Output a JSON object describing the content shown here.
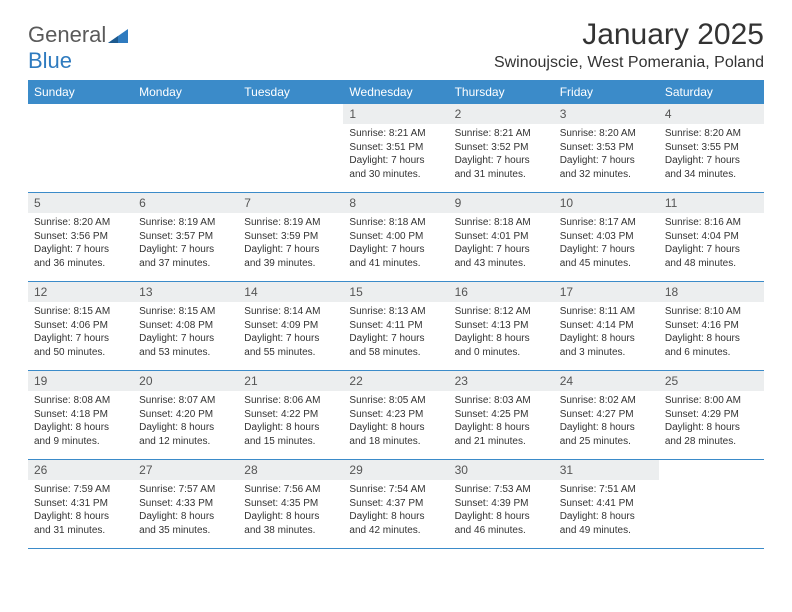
{
  "logo": {
    "text1": "General",
    "text2": "Blue"
  },
  "header": {
    "title": "January 2025",
    "subtitle": "Swinoujscie, West Pomerania, Poland"
  },
  "style": {
    "header_bg": "#3b8bc9",
    "header_fg": "#ffffff",
    "daynum_bg": "#eceeef",
    "week_border": "#3b8bc9",
    "title_color": "#333333",
    "body_bg": "#ffffff"
  },
  "dayNames": [
    "Sunday",
    "Monday",
    "Tuesday",
    "Wednesday",
    "Thursday",
    "Friday",
    "Saturday"
  ],
  "weeks": [
    [
      {
        "n": "",
        "sr": "",
        "ss": "",
        "dl": ""
      },
      {
        "n": "",
        "sr": "",
        "ss": "",
        "dl": ""
      },
      {
        "n": "",
        "sr": "",
        "ss": "",
        "dl": ""
      },
      {
        "n": "1",
        "sr": "8:21 AM",
        "ss": "3:51 PM",
        "dl": "7 hours and 30 minutes."
      },
      {
        "n": "2",
        "sr": "8:21 AM",
        "ss": "3:52 PM",
        "dl": "7 hours and 31 minutes."
      },
      {
        "n": "3",
        "sr": "8:20 AM",
        "ss": "3:53 PM",
        "dl": "7 hours and 32 minutes."
      },
      {
        "n": "4",
        "sr": "8:20 AM",
        "ss": "3:55 PM",
        "dl": "7 hours and 34 minutes."
      }
    ],
    [
      {
        "n": "5",
        "sr": "8:20 AM",
        "ss": "3:56 PM",
        "dl": "7 hours and 36 minutes."
      },
      {
        "n": "6",
        "sr": "8:19 AM",
        "ss": "3:57 PM",
        "dl": "7 hours and 37 minutes."
      },
      {
        "n": "7",
        "sr": "8:19 AM",
        "ss": "3:59 PM",
        "dl": "7 hours and 39 minutes."
      },
      {
        "n": "8",
        "sr": "8:18 AM",
        "ss": "4:00 PM",
        "dl": "7 hours and 41 minutes."
      },
      {
        "n": "9",
        "sr": "8:18 AM",
        "ss": "4:01 PM",
        "dl": "7 hours and 43 minutes."
      },
      {
        "n": "10",
        "sr": "8:17 AM",
        "ss": "4:03 PM",
        "dl": "7 hours and 45 minutes."
      },
      {
        "n": "11",
        "sr": "8:16 AM",
        "ss": "4:04 PM",
        "dl": "7 hours and 48 minutes."
      }
    ],
    [
      {
        "n": "12",
        "sr": "8:15 AM",
        "ss": "4:06 PM",
        "dl": "7 hours and 50 minutes."
      },
      {
        "n": "13",
        "sr": "8:15 AM",
        "ss": "4:08 PM",
        "dl": "7 hours and 53 minutes."
      },
      {
        "n": "14",
        "sr": "8:14 AM",
        "ss": "4:09 PM",
        "dl": "7 hours and 55 minutes."
      },
      {
        "n": "15",
        "sr": "8:13 AM",
        "ss": "4:11 PM",
        "dl": "7 hours and 58 minutes."
      },
      {
        "n": "16",
        "sr": "8:12 AM",
        "ss": "4:13 PM",
        "dl": "8 hours and 0 minutes."
      },
      {
        "n": "17",
        "sr": "8:11 AM",
        "ss": "4:14 PM",
        "dl": "8 hours and 3 minutes."
      },
      {
        "n": "18",
        "sr": "8:10 AM",
        "ss": "4:16 PM",
        "dl": "8 hours and 6 minutes."
      }
    ],
    [
      {
        "n": "19",
        "sr": "8:08 AM",
        "ss": "4:18 PM",
        "dl": "8 hours and 9 minutes."
      },
      {
        "n": "20",
        "sr": "8:07 AM",
        "ss": "4:20 PM",
        "dl": "8 hours and 12 minutes."
      },
      {
        "n": "21",
        "sr": "8:06 AM",
        "ss": "4:22 PM",
        "dl": "8 hours and 15 minutes."
      },
      {
        "n": "22",
        "sr": "8:05 AM",
        "ss": "4:23 PM",
        "dl": "8 hours and 18 minutes."
      },
      {
        "n": "23",
        "sr": "8:03 AM",
        "ss": "4:25 PM",
        "dl": "8 hours and 21 minutes."
      },
      {
        "n": "24",
        "sr": "8:02 AM",
        "ss": "4:27 PM",
        "dl": "8 hours and 25 minutes."
      },
      {
        "n": "25",
        "sr": "8:00 AM",
        "ss": "4:29 PM",
        "dl": "8 hours and 28 minutes."
      }
    ],
    [
      {
        "n": "26",
        "sr": "7:59 AM",
        "ss": "4:31 PM",
        "dl": "8 hours and 31 minutes."
      },
      {
        "n": "27",
        "sr": "7:57 AM",
        "ss": "4:33 PM",
        "dl": "8 hours and 35 minutes."
      },
      {
        "n": "28",
        "sr": "7:56 AM",
        "ss": "4:35 PM",
        "dl": "8 hours and 38 minutes."
      },
      {
        "n": "29",
        "sr": "7:54 AM",
        "ss": "4:37 PM",
        "dl": "8 hours and 42 minutes."
      },
      {
        "n": "30",
        "sr": "7:53 AM",
        "ss": "4:39 PM",
        "dl": "8 hours and 46 minutes."
      },
      {
        "n": "31",
        "sr": "7:51 AM",
        "ss": "4:41 PM",
        "dl": "8 hours and 49 minutes."
      },
      {
        "n": "",
        "sr": "",
        "ss": "",
        "dl": ""
      }
    ]
  ],
  "labels": {
    "sunrise": "Sunrise: ",
    "sunset": "Sunset: ",
    "daylight": "Daylight: "
  }
}
